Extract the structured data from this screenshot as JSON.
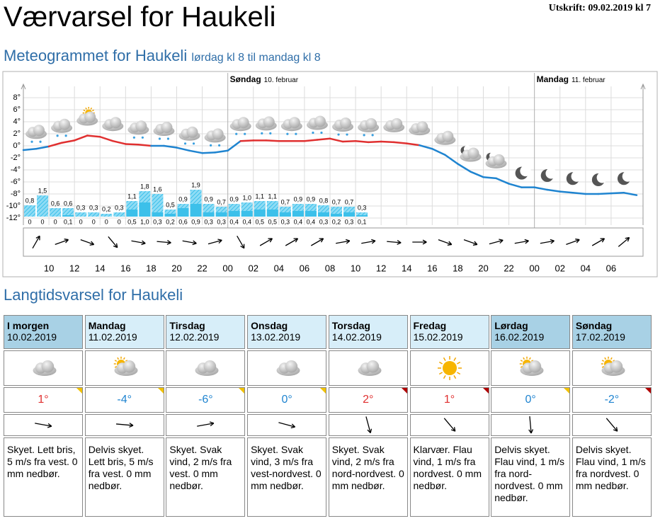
{
  "header": {
    "title": "Værvarsel for Haukeli",
    "printed": "Utskrift: 09.02.2019 kl 7"
  },
  "meteogram": {
    "title": "Meteogrammet for Haukeli",
    "subtitle": "lørdag kl 8 til mandag kl 8",
    "days": [
      {
        "name": "Søndag",
        "date": "10. februar"
      },
      {
        "name": "Mandag",
        "date": "11. februar"
      }
    ],
    "xlim": [
      8,
      56.5
    ],
    "ylim": [
      -12,
      8
    ],
    "yticks": [
      {
        "value": 8,
        "label": "8°"
      },
      {
        "value": 6,
        "label": "6°"
      },
      {
        "value": 4,
        "label": "4°"
      },
      {
        "value": 2,
        "label": "2°"
      },
      {
        "value": 0,
        "label": "0°"
      },
      {
        "value": -2,
        "label": "-2°"
      },
      {
        "value": -4,
        "label": "-4°"
      },
      {
        "value": -6,
        "label": "-6°"
      },
      {
        "value": -8,
        "label": "-8°"
      },
      {
        "value": -10,
        "label": "-10°"
      },
      {
        "value": -12,
        "label": "-12°"
      }
    ],
    "xticks": [
      {
        "value": 10,
        "label": "10"
      },
      {
        "value": 12,
        "label": "12"
      },
      {
        "value": 14,
        "label": "14"
      },
      {
        "value": 16,
        "label": "16"
      },
      {
        "value": 18,
        "label": "18"
      },
      {
        "value": 20,
        "label": "20"
      },
      {
        "value": 22,
        "label": "22"
      },
      {
        "value": 24,
        "label": "00"
      },
      {
        "value": 26,
        "label": "02"
      },
      {
        "value": 28,
        "label": "04"
      },
      {
        "value": 30,
        "label": "06"
      },
      {
        "value": 32,
        "label": "08"
      },
      {
        "value": 34,
        "label": "10"
      },
      {
        "value": 36,
        "label": "12"
      },
      {
        "value": 38,
        "label": "14"
      },
      {
        "value": 40,
        "label": "16"
      },
      {
        "value": 42,
        "label": "18"
      },
      {
        "value": 44,
        "label": "20"
      },
      {
        "value": 46,
        "label": "22"
      },
      {
        "value": 48,
        "label": "00"
      },
      {
        "value": 50,
        "label": "02"
      },
      {
        "value": 52,
        "label": "04"
      },
      {
        "value": 54,
        "label": "06"
      }
    ],
    "temperature": {
      "warm_color": "#e03030",
      "cold_color": "#1f84d0",
      "x": [
        8,
        9,
        10,
        11,
        12,
        13,
        14,
        15,
        16,
        17,
        18,
        19,
        20,
        21,
        22,
        23,
        24,
        25,
        26,
        27,
        28,
        29,
        30,
        31,
        32,
        33,
        34,
        35,
        36,
        37,
        38,
        39,
        40,
        41,
        42,
        43,
        44,
        45,
        46,
        47,
        48,
        49,
        50,
        51,
        52,
        53,
        54,
        55,
        56
      ],
      "values": [
        -0.7,
        -0.5,
        -0.1,
        0.5,
        0.9,
        1.7,
        1.5,
        0.8,
        0.3,
        0.2,
        0,
        0,
        -0.3,
        -0.8,
        -1.2,
        -1.1,
        -0.8,
        0.8,
        0.9,
        0.9,
        0.8,
        0.8,
        0.8,
        1.0,
        1.2,
        0.7,
        0.8,
        0.6,
        0.7,
        0.6,
        0.4,
        0.1,
        -0.5,
        -1.5,
        -3.0,
        -4.3,
        -5.2,
        -5.4,
        -6.3,
        -6.9,
        -6.9,
        -7.3,
        -7.6,
        -7.8,
        -8.0,
        -8.0,
        -7.9,
        -7.8,
        -8.2
      ]
    },
    "precipitation": {
      "color": "#3cc0ea",
      "x": [
        8,
        9,
        10,
        11,
        12,
        13,
        14,
        15,
        16,
        17,
        18,
        19,
        20,
        21,
        22,
        23,
        24,
        25,
        26,
        27,
        28,
        29,
        30,
        31,
        32,
        33,
        34
      ],
      "max": [
        0.8,
        1.5,
        0.6,
        0.6,
        0.3,
        0.3,
        0.2,
        0.3,
        1.1,
        1.8,
        1.6,
        0.5,
        0.9,
        1.9,
        0.9,
        0.7,
        0.9,
        1.0,
        1.1,
        1.1,
        0.7,
        0.9,
        0.9,
        0.8,
        0.7,
        0.7,
        0.3
      ],
      "max_labels": [
        "0,8",
        "1,5",
        "0,6",
        "0,6",
        "0,3",
        "0,3",
        "0,2",
        "0,3",
        "1,1",
        "1,8",
        "1,6",
        "0,5",
        "0,9",
        "1,9",
        "0,9",
        "0,7",
        "0,9",
        "1,0",
        "1,1",
        "1,1",
        "0,7",
        "0,9",
        "0,9",
        "0,8",
        "0,7",
        "0,7",
        "0,3"
      ],
      "min": [
        0,
        0,
        0,
        0.1,
        0,
        0,
        0,
        0,
        0.5,
        1.0,
        0.3,
        0.2,
        0.6,
        0.9,
        0.3,
        0.3,
        0.4,
        0.4,
        0.5,
        0.5,
        0.3,
        0.4,
        0.4,
        0.3,
        0.2,
        0.3,
        0.1
      ],
      "min_labels": [
        "0",
        "0",
        "0",
        "0,1",
        "0",
        "0",
        "0",
        "0",
        "0,5",
        "1,0",
        "0,3",
        "0,2",
        "0,6",
        "0,9",
        "0,3",
        "0,3",
        "0,4",
        "0,4",
        "0,5",
        "0,5",
        "0,3",
        "0,4",
        "0,4",
        "0,3",
        "0,2",
        "0,3",
        "0,1"
      ]
    }
  },
  "forecast": {
    "title": "Langtidsvarsel for Haukeli",
    "days": [
      {
        "day": "I morgen",
        "date": "10.02.2019",
        "temp": "1°",
        "text": "Skyet. Lett bris, 5 m/s fra vest. 0 mm nedbør."
      },
      {
        "day": "Mandag",
        "date": "11.02.2019",
        "temp": "-4°",
        "text": "Delvis skyet. Lett bris, 5 m/s fra vest. 0 mm nedbør."
      },
      {
        "day": "Tirsdag",
        "date": "12.02.2019",
        "temp": "-6°",
        "text": "Skyet. Svak vind, 2 m/s fra vest. 0 mm nedbør."
      },
      {
        "day": "Onsdag",
        "date": "13.02.2019",
        "temp": "0°",
        "text": "Skyet. Svak vind, 3 m/s fra vest-nordvest. 0 mm nedbør."
      },
      {
        "day": "Torsdag",
        "date": "14.02.2019",
        "temp": "2°",
        "text": "Skyet. Svak vind, 2 m/s fra nord-nordvest. 0 mm nedbør."
      },
      {
        "day": "Fredag",
        "date": "15.02.2019",
        "temp": "1°",
        "text": "Klarvær. Flau vind, 1 m/s fra nordvest. 0 mm nedbør."
      },
      {
        "day": "Lørdag",
        "date": "16.02.2019",
        "temp": "0°",
        "text": "Delvis skyet. Flau vind, 1 m/s fra nord-nordvest. 0 mm nedbør."
      },
      {
        "day": "Søndag",
        "date": "17.02.2019",
        "temp": "-2°",
        "text": "Delvis skyet. Flau vind, 1 m/s fra nordvest. 0 mm nedbør."
      }
    ]
  }
}
